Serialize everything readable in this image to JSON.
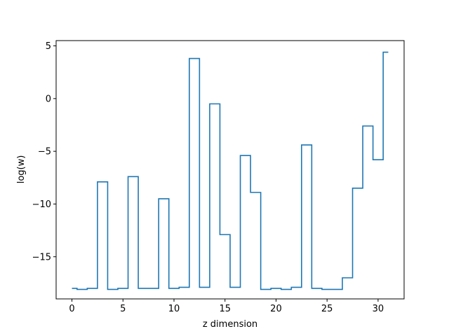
{
  "chart_data": {
    "type": "line",
    "drawstyle": "steps-mid",
    "title": "",
    "xlabel": "z dimension",
    "ylabel": "log(w)",
    "xlim": [
      -1.55,
      32.55
    ],
    "ylim": [
      -19.0,
      5.5
    ],
    "xticks": [
      0,
      5,
      10,
      15,
      20,
      25,
      30
    ],
    "yticks": [
      5,
      0,
      -5,
      -10,
      -15
    ],
    "ytick_labels": [
      "5",
      "0",
      "−5",
      "−10",
      "−15"
    ],
    "grid": false,
    "legend": "none",
    "series": [
      {
        "color": "#1f77b4",
        "x": [
          0,
          1,
          2,
          3,
          4,
          5,
          6,
          7,
          8,
          9,
          10,
          11,
          12,
          13,
          14,
          15,
          16,
          17,
          18,
          19,
          20,
          21,
          22,
          23,
          24,
          25,
          26,
          27,
          28,
          29,
          30,
          31
        ],
        "values": [
          -18.0,
          -18.1,
          -18.0,
          -7.9,
          -18.1,
          -18.0,
          -7.4,
          -18.0,
          -18.0,
          -9.5,
          -18.0,
          -17.9,
          3.8,
          -17.9,
          -0.5,
          -12.9,
          -17.9,
          -5.4,
          -8.9,
          -18.1,
          -18.0,
          -18.1,
          -17.9,
          -4.4,
          -18.0,
          -18.1,
          -18.1,
          -17.0,
          -8.5,
          -2.6,
          -5.8,
          4.4
        ]
      }
    ]
  }
}
